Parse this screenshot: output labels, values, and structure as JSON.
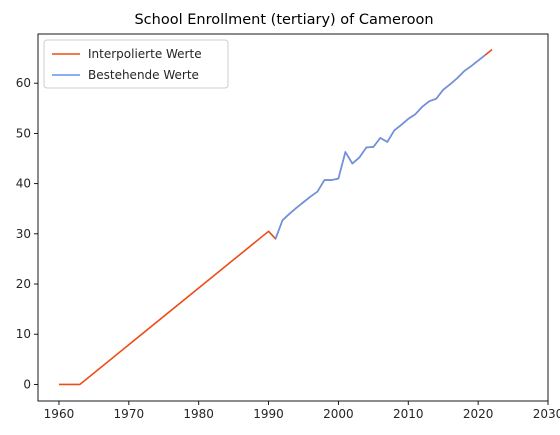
{
  "chart_data": {
    "type": "line",
    "title": "School Enrollment (tertiary) of Cameroon",
    "xlabel": "",
    "ylabel": "",
    "xlim": [
      1957,
      2030
    ],
    "ylim": [
      -3.3,
      69.8
    ],
    "xticks": [
      1960,
      1970,
      1980,
      1990,
      2000,
      2010,
      2020,
      2030
    ],
    "yticks": [
      0,
      10,
      20,
      30,
      40,
      50,
      60
    ],
    "legend_position": "top-left",
    "grid": false,
    "series": [
      {
        "name": "Interpolierte Werte",
        "color": "#ee4c17",
        "points": [
          [
            1960,
            0
          ],
          [
            1963,
            0
          ],
          [
            1990,
            30.5
          ],
          [
            1991,
            29.0
          ],
          [
            1992,
            32.7
          ],
          [
            1993,
            34.0
          ],
          [
            1994,
            35.2
          ],
          [
            1995,
            36.3
          ],
          [
            1996,
            37.4
          ],
          [
            1997,
            38.4
          ],
          [
            1998,
            40.7
          ],
          [
            1999,
            40.7
          ],
          [
            2000,
            41.0
          ],
          [
            2001,
            46.3
          ],
          [
            2002,
            44.0
          ],
          [
            2003,
            45.2
          ],
          [
            2004,
            47.2
          ],
          [
            2005,
            47.3
          ],
          [
            2006,
            49.1
          ],
          [
            2007,
            48.3
          ],
          [
            2008,
            50.6
          ],
          [
            2009,
            51.7
          ],
          [
            2010,
            52.9
          ],
          [
            2011,
            53.8
          ],
          [
            2012,
            55.3
          ],
          [
            2013,
            56.4
          ],
          [
            2014,
            56.9
          ],
          [
            2015,
            58.7
          ],
          [
            2016,
            59.8
          ],
          [
            2017,
            61.0
          ],
          [
            2018,
            62.4
          ],
          [
            2019,
            63.4
          ],
          [
            2020,
            64.5
          ],
          [
            2021,
            65.6
          ],
          [
            2022,
            66.7
          ]
        ]
      },
      {
        "name": "Bestehende Werte",
        "color": "#6495ed",
        "points": [
          [
            1991,
            29.0
          ],
          [
            1992,
            32.7
          ],
          [
            1993,
            34.0
          ],
          [
            1994,
            35.2
          ],
          [
            1995,
            36.3
          ],
          [
            1996,
            37.4
          ],
          [
            1997,
            38.4
          ],
          [
            1998,
            40.7
          ],
          [
            1999,
            40.7
          ],
          [
            2000,
            41.0
          ],
          [
            2001,
            46.3
          ],
          [
            2002,
            44.0
          ],
          [
            2003,
            45.2
          ],
          [
            2004,
            47.2
          ],
          [
            2005,
            47.3
          ],
          [
            2006,
            49.1
          ],
          [
            2007,
            48.3
          ],
          [
            2008,
            50.6
          ],
          [
            2009,
            51.7
          ],
          [
            2010,
            52.9
          ],
          [
            2011,
            53.8
          ],
          [
            2012,
            55.3
          ],
          [
            2013,
            56.4
          ],
          [
            2014,
            56.9
          ],
          [
            2015,
            58.7
          ],
          [
            2016,
            59.8
          ],
          [
            2017,
            61.0
          ],
          [
            2018,
            62.4
          ],
          [
            2019,
            63.4
          ],
          [
            2020,
            64.5
          ],
          [
            2021,
            65.6
          ]
        ]
      }
    ]
  }
}
